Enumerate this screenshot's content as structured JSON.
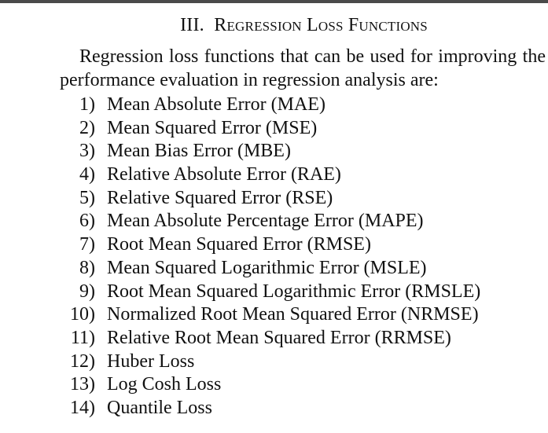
{
  "heading": {
    "numeral": "III.",
    "title": "Regression Loss Functions"
  },
  "paragraph": "Regression loss functions that can be used for improving the performance evaluation in regression analysis are:",
  "items": [
    {
      "number": "1)",
      "text": "Mean Absolute Error (MAE)"
    },
    {
      "number": "2)",
      "text": "Mean Squared Error (MSE)"
    },
    {
      "number": "3)",
      "text": "Mean Bias Error (MBE)"
    },
    {
      "number": "4)",
      "text": "Relative Absolute Error (RAE)"
    },
    {
      "number": "5)",
      "text": "Relative Squared Error (RSE)"
    },
    {
      "number": "6)",
      "text": "Mean Absolute Percentage Error (MAPE)"
    },
    {
      "number": "7)",
      "text": "Root Mean Squared Error (RMSE)"
    },
    {
      "number": "8)",
      "text": "Mean Squared Logarithmic Error (MSLE)"
    },
    {
      "number": "9)",
      "text": "Root Mean Squared Logarithmic Error (RMSLE)"
    },
    {
      "number": "10)",
      "text": "Normalized Root Mean Squared Error (NRMSE)"
    },
    {
      "number": "11)",
      "text": "Relative Root Mean Squared Error (RRMSE)"
    },
    {
      "number": "12)",
      "text": "Huber Loss"
    },
    {
      "number": "13)",
      "text": "Log Cosh Loss"
    },
    {
      "number": "14)",
      "text": "Quantile Loss"
    }
  ]
}
